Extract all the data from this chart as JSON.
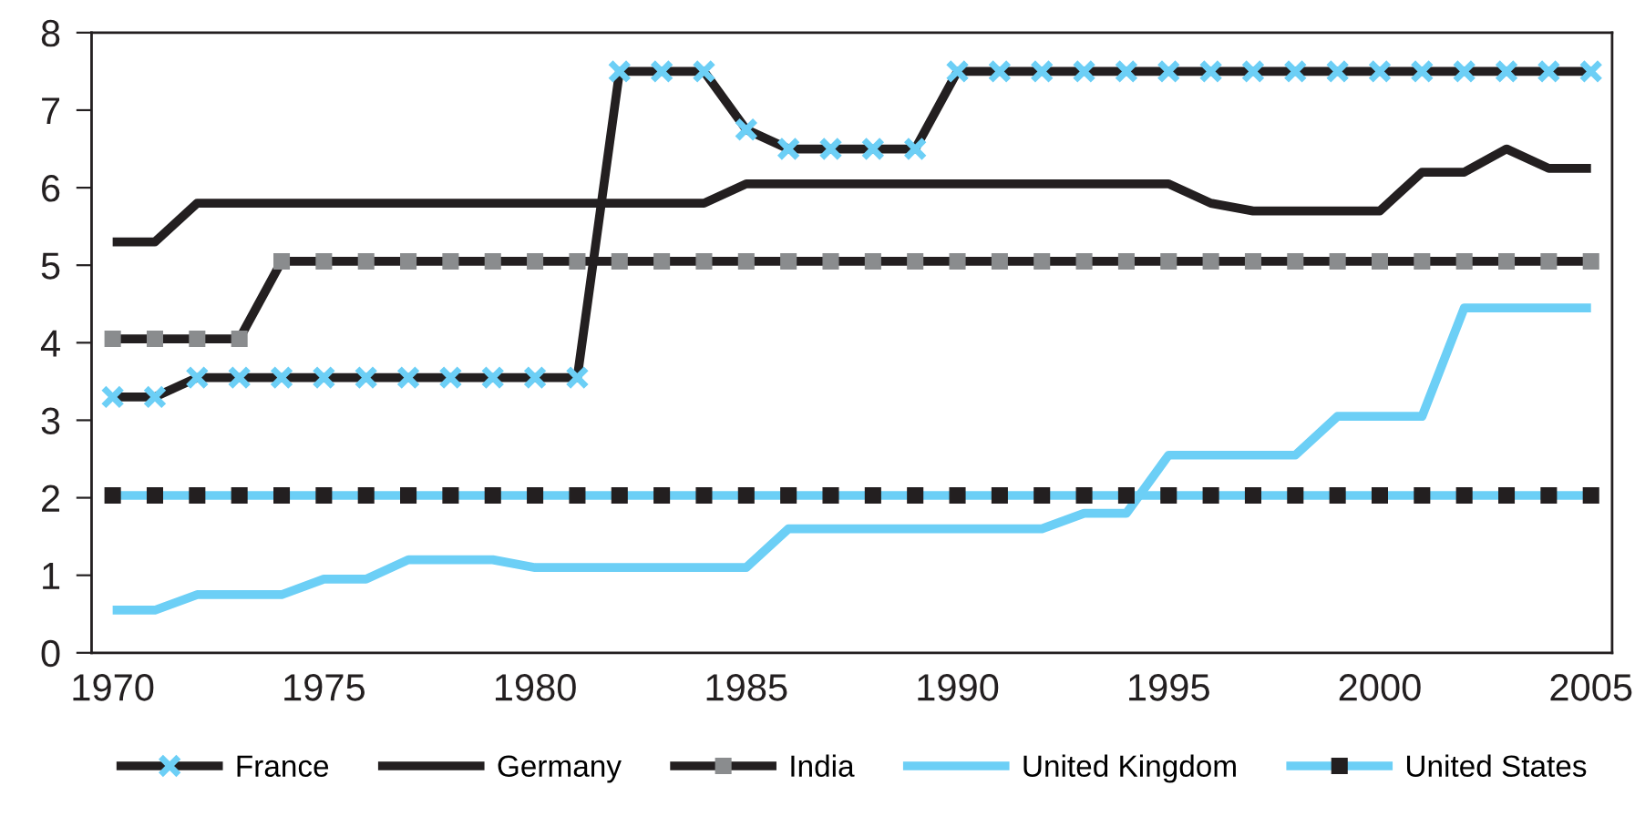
{
  "chart_data": {
    "type": "line",
    "x": [
      1970,
      1971,
      1972,
      1973,
      1974,
      1975,
      1976,
      1977,
      1978,
      1979,
      1980,
      1981,
      1982,
      1983,
      1984,
      1985,
      1986,
      1987,
      1988,
      1989,
      1990,
      1991,
      1992,
      1993,
      1994,
      1995,
      1996,
      1997,
      1998,
      1999,
      2000,
      2001,
      2002,
      2003,
      2004,
      2005
    ],
    "series": [
      {
        "name": "France",
        "color": "#231f20",
        "marker": "cross",
        "values": [
          3.3,
          3.3,
          3.55,
          3.55,
          3.55,
          3.55,
          3.55,
          3.55,
          3.55,
          3.55,
          3.55,
          3.55,
          7.5,
          7.5,
          7.5,
          6.75,
          6.5,
          6.5,
          6.5,
          6.5,
          7.5,
          7.5,
          7.5,
          7.5,
          7.5,
          7.5,
          7.5,
          7.5,
          7.5,
          7.5,
          7.5,
          7.5,
          7.5,
          7.5,
          7.5,
          7.5
        ]
      },
      {
        "name": "Germany",
        "color": "#231f20",
        "marker": "none",
        "values": [
          5.3,
          5.3,
          5.8,
          5.8,
          5.8,
          5.8,
          5.8,
          5.8,
          5.8,
          5.8,
          5.8,
          5.8,
          5.8,
          5.8,
          5.8,
          6.05,
          6.05,
          6.05,
          6.05,
          6.05,
          6.05,
          6.05,
          6.05,
          6.05,
          6.05,
          6.05,
          5.8,
          5.7,
          5.7,
          5.7,
          5.7,
          6.2,
          6.2,
          6.5,
          6.25,
          6.25
        ]
      },
      {
        "name": "India",
        "color": "#231f20",
        "marker": "square",
        "values": [
          4.05,
          4.05,
          4.05,
          4.05,
          5.05,
          5.05,
          5.05,
          5.05,
          5.05,
          5.05,
          5.05,
          5.05,
          5.05,
          5.05,
          5.05,
          5.05,
          5.05,
          5.05,
          5.05,
          5.05,
          5.05,
          5.05,
          5.05,
          5.05,
          5.05,
          5.05,
          5.05,
          5.05,
          5.05,
          5.05,
          5.05,
          5.05,
          5.05,
          5.05,
          5.05,
          5.05
        ]
      },
      {
        "name": "United Kingdom",
        "color": "#6ccff6",
        "marker": "none",
        "values": [
          0.55,
          0.55,
          0.75,
          0.75,
          0.75,
          0.95,
          0.95,
          1.2,
          1.2,
          1.2,
          1.1,
          1.1,
          1.1,
          1.1,
          1.1,
          1.1,
          1.6,
          1.6,
          1.6,
          1.6,
          1.6,
          1.6,
          1.6,
          1.8,
          1.8,
          2.55,
          2.55,
          2.55,
          2.55,
          3.05,
          3.05,
          3.05,
          4.45,
          4.45,
          4.45,
          4.45
        ]
      },
      {
        "name": "United States",
        "color": "#6ccff6",
        "marker": "square",
        "values": [
          2.03,
          2.03,
          2.03,
          2.03,
          2.03,
          2.03,
          2.03,
          2.03,
          2.03,
          2.03,
          2.03,
          2.03,
          2.03,
          2.03,
          2.03,
          2.03,
          2.03,
          2.03,
          2.03,
          2.03,
          2.03,
          2.03,
          2.03,
          2.03,
          2.03,
          2.03,
          2.03,
          2.03,
          2.03,
          2.03,
          2.03,
          2.03,
          2.03,
          2.03,
          2.03,
          2.03
        ]
      }
    ],
    "xlim": [
      1969.5,
      2005.5
    ],
    "xticks": [
      1970,
      1975,
      1980,
      1985,
      1990,
      1995,
      2000,
      2005
    ],
    "ylim": [
      0,
      8
    ],
    "yticks": [
      0,
      1,
      2,
      3,
      4,
      5,
      6,
      7,
      8
    ],
    "grid": false,
    "legend": "bottom",
    "line_style": "solid"
  }
}
